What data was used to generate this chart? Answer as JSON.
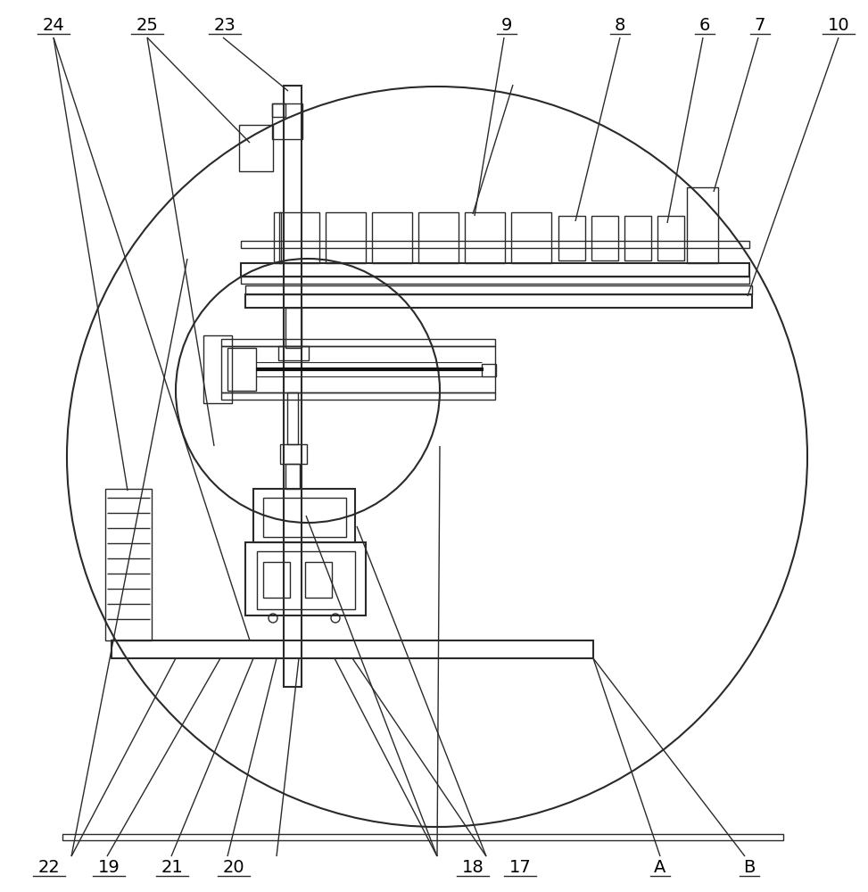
{
  "bg_color": "#ffffff",
  "lc": "#2a2a2a",
  "lw": 1.0,
  "lw2": 1.5,
  "fig_width": 9.73,
  "fig_height": 10.0
}
